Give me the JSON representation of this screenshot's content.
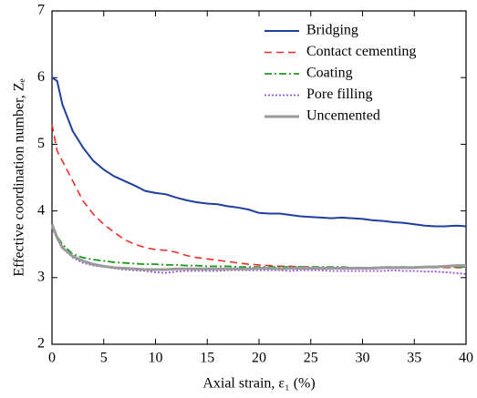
{
  "chart_data": {
    "type": "line",
    "xlabel": "Axial strain, ε₁ (%)",
    "ylabel": "Effective coordination number, Zₑ",
    "x": [
      0,
      0.5,
      1,
      2,
      3,
      4,
      5,
      6,
      7,
      8,
      9,
      10,
      11,
      12,
      13,
      14,
      15,
      16,
      17,
      18,
      19,
      20,
      21,
      22,
      23,
      24,
      25,
      26,
      27,
      28,
      29,
      30,
      31,
      32,
      33,
      34,
      35,
      36,
      37,
      38,
      39,
      40
    ],
    "xlim": [
      0,
      40
    ],
    "xticks": [
      0,
      5,
      10,
      15,
      20,
      25,
      30,
      35,
      40
    ],
    "ylim": [
      2,
      7
    ],
    "yticks": [
      2,
      3,
      4,
      5,
      6,
      7
    ],
    "legend": "upper right",
    "series": [
      {
        "name": "Bridging",
        "color": "#1f3f9f",
        "dash": "solid",
        "values": [
          6.0,
          5.95,
          5.6,
          5.2,
          4.95,
          4.75,
          4.62,
          4.52,
          4.45,
          4.38,
          4.3,
          4.27,
          4.25,
          4.2,
          4.16,
          4.13,
          4.11,
          4.1,
          4.07,
          4.05,
          4.02,
          3.97,
          3.96,
          3.96,
          3.94,
          3.92,
          3.91,
          3.9,
          3.89,
          3.9,
          3.89,
          3.88,
          3.86,
          3.85,
          3.83,
          3.82,
          3.8,
          3.78,
          3.77,
          3.77,
          3.78,
          3.77
        ]
      },
      {
        "name": "Contact cementing",
        "color": "#e8302a",
        "dash": "dashed",
        "values": [
          5.3,
          4.9,
          4.75,
          4.45,
          4.15,
          3.95,
          3.8,
          3.68,
          3.57,
          3.5,
          3.45,
          3.42,
          3.41,
          3.38,
          3.33,
          3.3,
          3.28,
          3.26,
          3.24,
          3.22,
          3.2,
          3.19,
          3.18,
          3.17,
          3.17,
          3.16,
          3.16,
          3.15,
          3.15,
          3.15,
          3.15,
          3.15,
          3.15,
          3.15,
          3.15,
          3.15,
          3.15,
          3.15,
          3.15,
          3.15,
          3.15,
          3.15
        ]
      },
      {
        "name": "Coating",
        "color": "#1a9a1a",
        "dash": "dashdot",
        "values": [
          3.8,
          3.62,
          3.5,
          3.35,
          3.3,
          3.27,
          3.25,
          3.23,
          3.22,
          3.21,
          3.2,
          3.2,
          3.19,
          3.19,
          3.18,
          3.18,
          3.17,
          3.17,
          3.17,
          3.16,
          3.16,
          3.16,
          3.16,
          3.16,
          3.16,
          3.16,
          3.16,
          3.16,
          3.16,
          3.16,
          3.15,
          3.15,
          3.15,
          3.16,
          3.16,
          3.16,
          3.16,
          3.16,
          3.17,
          3.17,
          3.16,
          3.16
        ]
      },
      {
        "name": "Pore filling",
        "color": "#9b4fdc",
        "dash": "dotted",
        "values": [
          3.75,
          3.58,
          3.45,
          3.3,
          3.22,
          3.18,
          3.16,
          3.14,
          3.12,
          3.11,
          3.1,
          3.08,
          3.07,
          3.09,
          3.1,
          3.1,
          3.1,
          3.1,
          3.11,
          3.11,
          3.11,
          3.11,
          3.11,
          3.11,
          3.1,
          3.11,
          3.11,
          3.11,
          3.1,
          3.1,
          3.1,
          3.1,
          3.1,
          3.1,
          3.11,
          3.1,
          3.1,
          3.09,
          3.09,
          3.08,
          3.07,
          3.05
        ]
      },
      {
        "name": "Uncemented",
        "color": "#9a9a9a",
        "dash": "thick",
        "values": [
          3.8,
          3.6,
          3.45,
          3.32,
          3.25,
          3.2,
          3.17,
          3.15,
          3.14,
          3.13,
          3.12,
          3.12,
          3.12,
          3.13,
          3.13,
          3.13,
          3.13,
          3.13,
          3.13,
          3.13,
          3.13,
          3.14,
          3.14,
          3.13,
          3.14,
          3.14,
          3.14,
          3.14,
          3.14,
          3.14,
          3.14,
          3.14,
          3.14,
          3.15,
          3.15,
          3.15,
          3.15,
          3.16,
          3.16,
          3.17,
          3.18,
          3.18
        ]
      }
    ]
  }
}
